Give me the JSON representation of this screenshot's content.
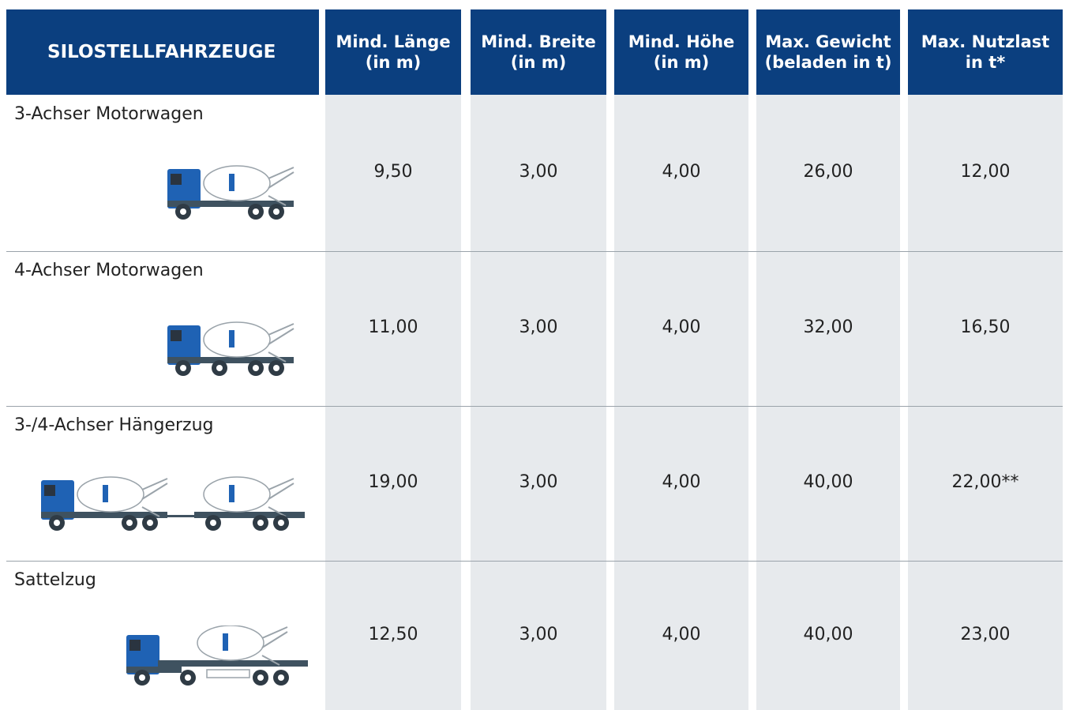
{
  "header": {
    "title": "SILOSTELLFAHRZEUGE",
    "columns": [
      [
        "Mind. Länge",
        "(in m)"
      ],
      [
        "Mind. Breite",
        "(in m)"
      ],
      [
        "Mind. Höhe",
        "(in m)"
      ],
      [
        "Max. Gewicht",
        "(beladen in t)"
      ],
      [
        "Max. Nutzlast",
        "in t*"
      ]
    ]
  },
  "rows": [
    {
      "name": "3-Achser Motorwagen",
      "values": [
        "9,50",
        "3,00",
        "4,00",
        "26,00",
        "12,00"
      ]
    },
    {
      "name": "4-Achser Motorwagen",
      "values": [
        "11,00",
        "3,00",
        "4,00",
        "32,00",
        "16,50"
      ]
    },
    {
      "name": "3-/4-Achser Hängerzug",
      "values": [
        "19,00",
        "3,00",
        "4,00",
        "40,00",
        "22,00**"
      ]
    },
    {
      "name": "Sattelzug",
      "values": [
        "12,50",
        "3,00",
        "4,00",
        "40,00",
        "23,00"
      ]
    }
  ]
}
